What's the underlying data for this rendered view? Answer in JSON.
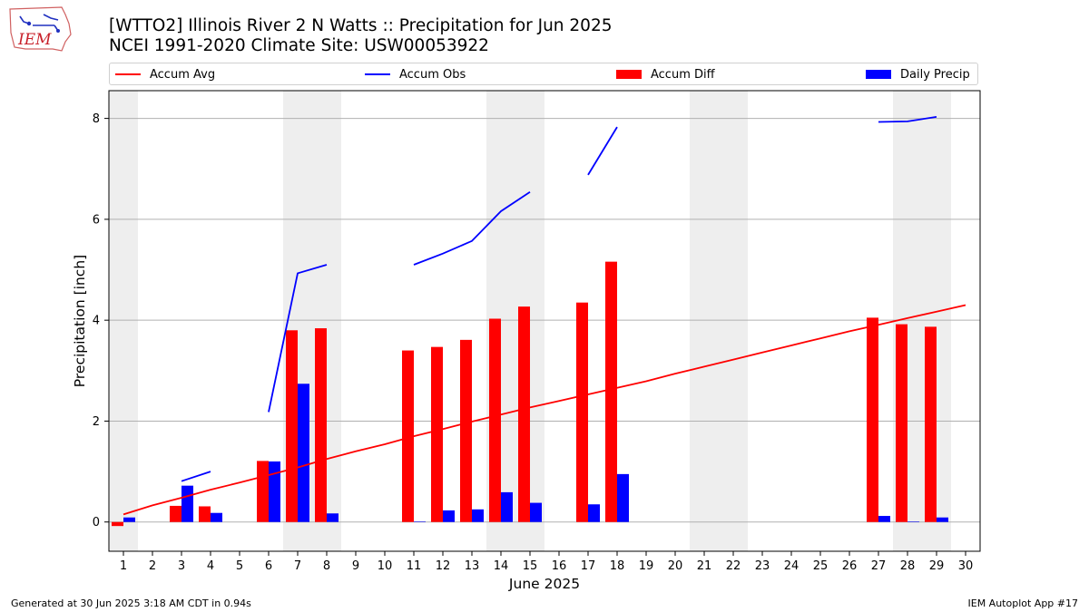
{
  "logo": {
    "text": "IEM"
  },
  "title": {
    "line1": "[WTTO2] Illinois River 2 N Watts :: Precipitation for Jun 2025",
    "line2": "NCEI 1991-2020 Climate Site: USW00053922"
  },
  "legend": [
    {
      "label": "Accum Avg",
      "kind": "line",
      "color": "#ff0000"
    },
    {
      "label": "Accum Obs",
      "kind": "line",
      "color": "#0000ff"
    },
    {
      "label": "Accum Diff",
      "kind": "patch",
      "color": "#ff0000"
    },
    {
      "label": "Daily Precip",
      "kind": "patch",
      "color": "#0000ff"
    }
  ],
  "footer": {
    "left": "Generated at 30 Jun 2025 3:18 AM CDT in 0.94s",
    "right": "IEM Autoplot App #17"
  },
  "chart_data": {
    "type": "bar",
    "xlabel": "June 2025",
    "ylabel": "Precipitation [inch]",
    "x": [
      1,
      2,
      3,
      4,
      5,
      6,
      7,
      8,
      9,
      10,
      11,
      12,
      13,
      14,
      15,
      16,
      17,
      18,
      19,
      20,
      21,
      22,
      23,
      24,
      25,
      26,
      27,
      28,
      29,
      30
    ],
    "xlim": [
      0.5,
      30.5
    ],
    "ylim": [
      -0.58,
      8.55
    ],
    "yticks": [
      0,
      2,
      4,
      6,
      8
    ],
    "grid": "horizontal",
    "legend_position": "top",
    "weekend_shading": [
      [
        0.5,
        1.5
      ],
      [
        6.5,
        8.5
      ],
      [
        13.5,
        15.5
      ],
      [
        20.5,
        22.5
      ],
      [
        27.5,
        29.5
      ]
    ],
    "series": [
      {
        "name": "Accum Avg",
        "kind": "line",
        "color": "#ff0000",
        "values": [
          0.15,
          0.33,
          0.48,
          0.64,
          0.78,
          0.93,
          1.08,
          1.25,
          1.4,
          1.54,
          1.7,
          1.84,
          1.99,
          2.13,
          2.27,
          2.4,
          2.53,
          2.66,
          2.79,
          2.94,
          3.08,
          3.22,
          3.36,
          3.5,
          3.64,
          3.78,
          3.91,
          4.04,
          4.17,
          4.3
        ]
      },
      {
        "name": "Accum Obs",
        "kind": "line",
        "color": "#0000ff",
        "values": [
          null,
          null,
          0.81,
          1.0,
          null,
          2.18,
          4.93,
          5.1,
          null,
          null,
          5.1,
          5.32,
          5.57,
          6.16,
          6.54,
          null,
          6.88,
          7.83,
          null,
          null,
          null,
          null,
          null,
          null,
          null,
          null,
          7.93,
          7.94,
          8.03,
          null
        ]
      },
      {
        "name": "Accum Diff",
        "kind": "bar",
        "color": "#ff0000",
        "values": [
          -0.08,
          null,
          0.32,
          0.31,
          null,
          1.21,
          3.8,
          3.84,
          null,
          null,
          3.4,
          3.47,
          3.61,
          4.03,
          4.27,
          null,
          4.35,
          5.16,
          null,
          null,
          null,
          null,
          null,
          null,
          null,
          null,
          4.05,
          3.92,
          3.87,
          null
        ]
      },
      {
        "name": "Daily Precip",
        "kind": "bar",
        "color": "#0000ff",
        "values": [
          0.09,
          null,
          0.72,
          0.18,
          null,
          1.2,
          2.74,
          0.17,
          null,
          null,
          0.01,
          0.23,
          0.25,
          0.59,
          0.38,
          null,
          0.35,
          0.95,
          null,
          null,
          null,
          null,
          null,
          null,
          null,
          null,
          0.12,
          0.01,
          0.09,
          null
        ]
      }
    ]
  }
}
